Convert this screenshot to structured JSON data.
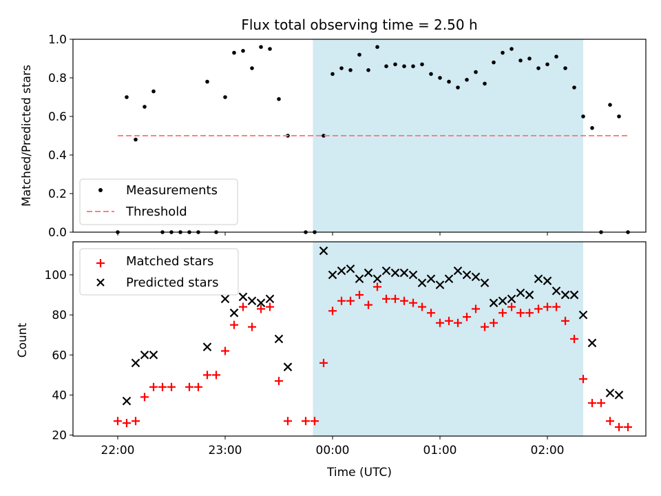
{
  "figure": {
    "title": "Flux total observing time = 2.50 h",
    "xlabel": "Time (UTC)",
    "x_ticks": [
      "22:00",
      "23:00",
      "00:00",
      "01:00",
      "02:00"
    ],
    "highlight_color": "#add8e6"
  },
  "chart_data": [
    {
      "type": "scatter",
      "ylabel": "Matched/Predicted stars",
      "ylim": [
        0,
        1.0
      ],
      "y_ticks": [
        "0.0",
        "0.2",
        "0.4",
        "0.6",
        "0.8",
        "1.0"
      ],
      "x_unit": "minutes relative to 00:00 UTC",
      "xlim": [
        -145,
        175
      ],
      "highlight_span": [
        -11,
        140
      ],
      "legend": {
        "placement": "lower-left",
        "entries": [
          "Measurements",
          "Threshold"
        ]
      },
      "series": [
        {
          "name": "Measurements",
          "color": "#000000",
          "marker": "dot",
          "points": [
            [
              -120,
              0.0
            ],
            [
              -115,
              0.7
            ],
            [
              -110,
              0.48
            ],
            [
              -105,
              0.65
            ],
            [
              -100,
              0.73
            ],
            [
              -95,
              0.0
            ],
            [
              -90,
              0.0
            ],
            [
              -85,
              0.0
            ],
            [
              -80,
              0.0
            ],
            [
              -75,
              0.0
            ],
            [
              -70,
              0.78
            ],
            [
              -65,
              0.0
            ],
            [
              -60,
              0.7
            ],
            [
              -55,
              0.93
            ],
            [
              -50,
              0.94
            ],
            [
              -45,
              0.85
            ],
            [
              -40,
              0.96
            ],
            [
              -35,
              0.95
            ],
            [
              -30,
              0.69
            ],
            [
              -25,
              0.5
            ],
            [
              -15,
              0.0
            ],
            [
              -10,
              0.0
            ],
            [
              -5,
              0.5
            ],
            [
              0,
              0.82
            ],
            [
              5,
              0.85
            ],
            [
              10,
              0.84
            ],
            [
              15,
              0.92
            ],
            [
              20,
              0.84
            ],
            [
              25,
              0.96
            ],
            [
              30,
              0.86
            ],
            [
              35,
              0.87
            ],
            [
              40,
              0.86
            ],
            [
              45,
              0.86
            ],
            [
              50,
              0.87
            ],
            [
              55,
              0.82
            ],
            [
              60,
              0.8
            ],
            [
              65,
              0.78
            ],
            [
              70,
              0.75
            ],
            [
              75,
              0.79
            ],
            [
              80,
              0.83
            ],
            [
              85,
              0.77
            ],
            [
              90,
              0.88
            ],
            [
              95,
              0.93
            ],
            [
              100,
              0.95
            ],
            [
              105,
              0.89
            ],
            [
              110,
              0.9
            ],
            [
              115,
              0.85
            ],
            [
              120,
              0.87
            ],
            [
              125,
              0.91
            ],
            [
              130,
              0.85
            ],
            [
              135,
              0.75
            ],
            [
              140,
              0.6
            ],
            [
              145,
              0.54
            ],
            [
              150,
              0.0
            ],
            [
              155,
              0.66
            ],
            [
              160,
              0.6
            ],
            [
              165,
              0.0
            ]
          ]
        },
        {
          "name": "Threshold",
          "color": "#ff7f7f",
          "style": "dashed",
          "points": [
            [
              -120,
              0.5
            ],
            [
              165,
              0.5
            ]
          ]
        }
      ]
    },
    {
      "type": "scatter",
      "ylabel": "Count",
      "ylim": [
        19.5,
        116.5
      ],
      "y_ticks": [
        "20",
        "40",
        "60",
        "80",
        "100"
      ],
      "x_unit": "minutes relative to 00:00 UTC",
      "xlim": [
        -145,
        175
      ],
      "highlight_span": [
        -11,
        140
      ],
      "legend": {
        "placement": "upper-left",
        "entries": [
          "Matched stars",
          "Predicted stars"
        ]
      },
      "series": [
        {
          "name": "Matched stars",
          "color": "#ff0000",
          "marker": "plus",
          "points": [
            [
              -120,
              27
            ],
            [
              -115,
              26
            ],
            [
              -110,
              27
            ],
            [
              -105,
              39
            ],
            [
              -100,
              44
            ],
            [
              -95,
              44
            ],
            [
              -90,
              44
            ],
            [
              -80,
              44
            ],
            [
              -75,
              44
            ],
            [
              -70,
              50
            ],
            [
              -65,
              50
            ],
            [
              -60,
              62
            ],
            [
              -55,
              75
            ],
            [
              -50,
              84
            ],
            [
              -45,
              74
            ],
            [
              -40,
              83
            ],
            [
              -35,
              84
            ],
            [
              -30,
              47
            ],
            [
              -25,
              27
            ],
            [
              -15,
              27
            ],
            [
              -10,
              27
            ],
            [
              -5,
              56
            ],
            [
              0,
              82
            ],
            [
              5,
              87
            ],
            [
              10,
              87
            ],
            [
              15,
              90
            ],
            [
              20,
              85
            ],
            [
              25,
              94
            ],
            [
              30,
              88
            ],
            [
              35,
              88
            ],
            [
              40,
              87
            ],
            [
              45,
              86
            ],
            [
              50,
              84
            ],
            [
              55,
              81
            ],
            [
              60,
              76
            ],
            [
              65,
              77
            ],
            [
              70,
              76
            ],
            [
              75,
              79
            ],
            [
              80,
              83
            ],
            [
              85,
              74
            ],
            [
              90,
              76
            ],
            [
              95,
              81
            ],
            [
              100,
              84
            ],
            [
              105,
              81
            ],
            [
              110,
              81
            ],
            [
              115,
              83
            ],
            [
              120,
              84
            ],
            [
              125,
              84
            ],
            [
              130,
              77
            ],
            [
              135,
              68
            ],
            [
              140,
              48
            ],
            [
              145,
              36
            ],
            [
              150,
              36
            ],
            [
              155,
              27
            ],
            [
              160,
              24
            ],
            [
              165,
              24
            ]
          ]
        },
        {
          "name": "Predicted stars",
          "color": "#000000",
          "marker": "x",
          "points": [
            [
              -115,
              37
            ],
            [
              -110,
              56
            ],
            [
              -105,
              60
            ],
            [
              -100,
              60
            ],
            [
              -70,
              64
            ],
            [
              -60,
              88
            ],
            [
              -55,
              81
            ],
            [
              -50,
              89
            ],
            [
              -45,
              87
            ],
            [
              -40,
              86
            ],
            [
              -35,
              88
            ],
            [
              -30,
              68
            ],
            [
              -25,
              54
            ],
            [
              -5,
              112
            ],
            [
              0,
              100
            ],
            [
              5,
              102
            ],
            [
              10,
              103
            ],
            [
              15,
              98
            ],
            [
              20,
              101
            ],
            [
              25,
              98
            ],
            [
              30,
              102
            ],
            [
              35,
              101
            ],
            [
              40,
              101
            ],
            [
              45,
              100
            ],
            [
              50,
              96
            ],
            [
              55,
              98
            ],
            [
              60,
              95
            ],
            [
              65,
              98
            ],
            [
              70,
              102
            ],
            [
              75,
              100
            ],
            [
              80,
              99
            ],
            [
              85,
              96
            ],
            [
              90,
              86
            ],
            [
              95,
              87
            ],
            [
              100,
              88
            ],
            [
              105,
              91
            ],
            [
              110,
              90
            ],
            [
              115,
              98
            ],
            [
              120,
              97
            ],
            [
              125,
              92
            ],
            [
              130,
              90
            ],
            [
              135,
              90
            ],
            [
              140,
              80
            ],
            [
              145,
              66
            ],
            [
              155,
              41
            ],
            [
              160,
              40
            ]
          ]
        }
      ]
    }
  ]
}
